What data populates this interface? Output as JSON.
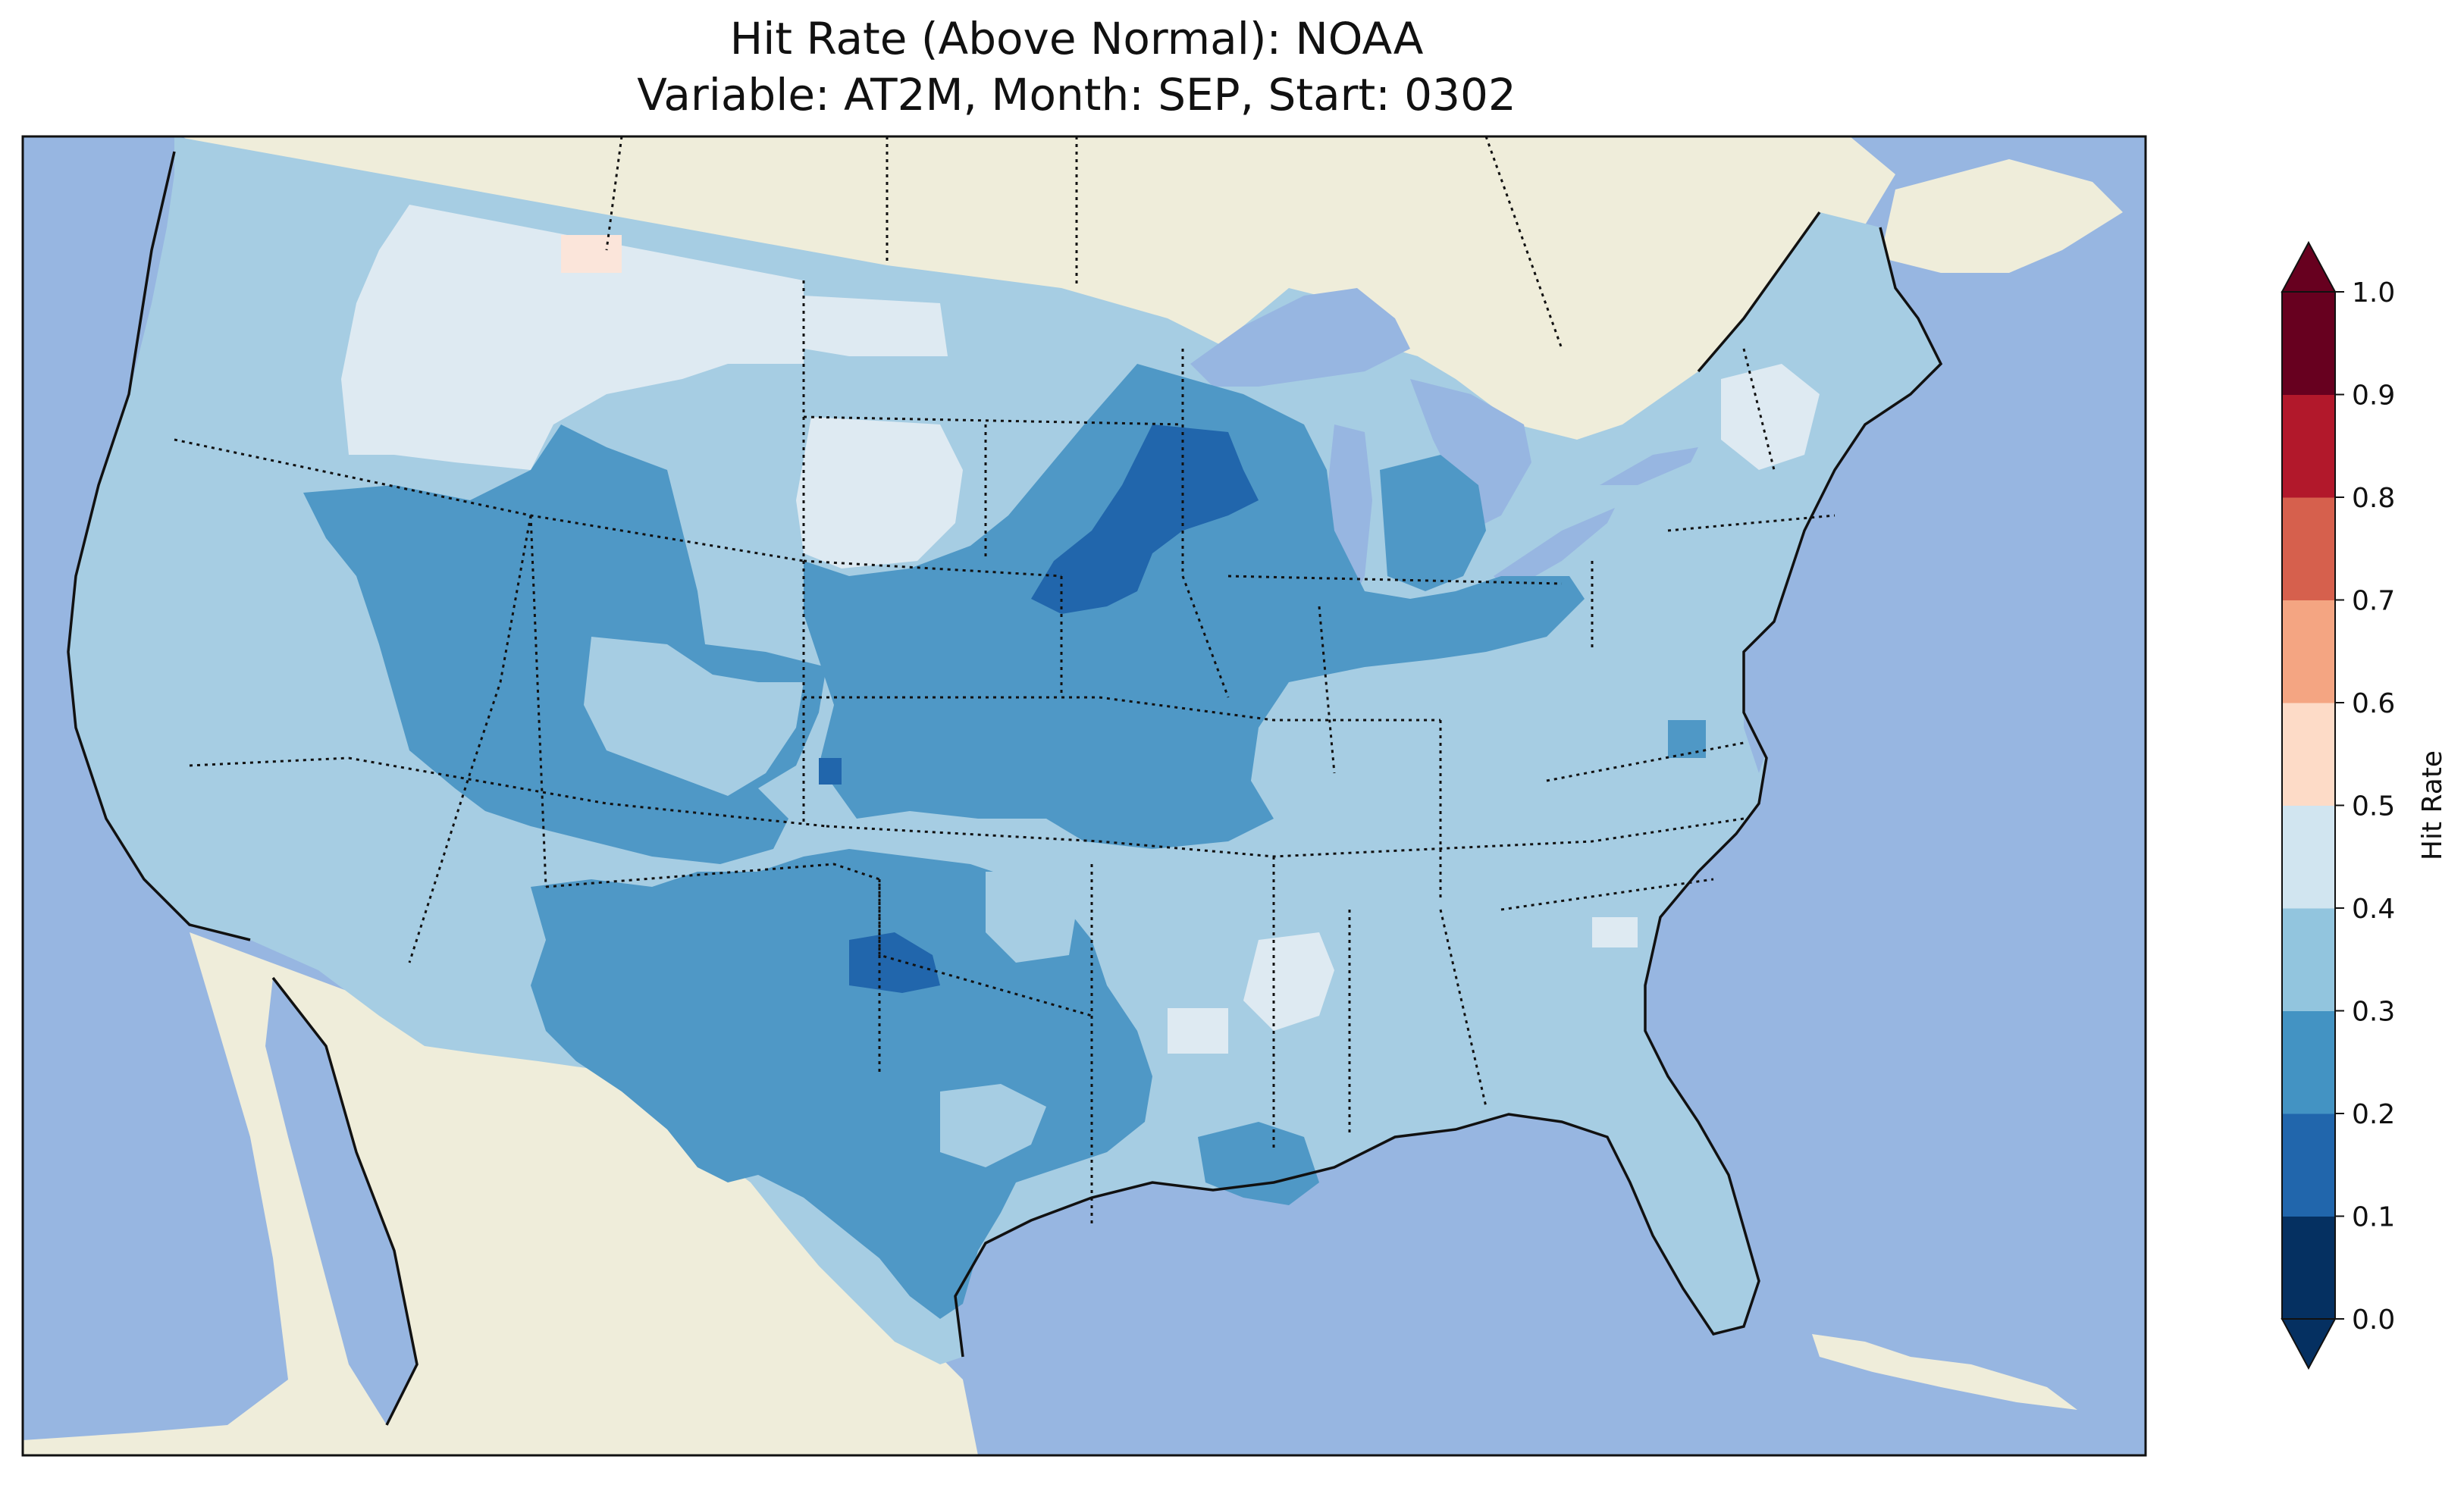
{
  "title": {
    "line1": "Hit Rate (Above Normal): NOAA",
    "line2": "Variable: AT2M, Month: SEP, Start: 0302"
  },
  "colorbar": {
    "label": "Hit Rate",
    "ticks": [
      "0.0",
      "0.1",
      "0.2",
      "0.3",
      "0.4",
      "0.5",
      "0.6",
      "0.7",
      "0.8",
      "0.9",
      "1.0"
    ],
    "colors": [
      "#053061",
      "#2166ac",
      "#4393c3",
      "#92c5de",
      "#d1e5f0",
      "#fddbc7",
      "#f4a582",
      "#d6604d",
      "#b2182b",
      "#67001f"
    ],
    "extend": "both"
  },
  "map_colors": {
    "ocean": "#97b6e1",
    "land": "#efedda",
    "bin_0_1": "#053061",
    "bin_1_2": "#2166ac",
    "bin_2_3": "#4f98c6",
    "bin_3_4": "#a6cde3",
    "bin_4_5": "#deeaf2",
    "bin_5_6": "#fbe5da"
  },
  "chart_data": {
    "type": "heatmap",
    "title": "Hit Rate (Above Normal): NOAA\nVariable: AT2M, Month: SEP, Start: 0302",
    "colorbar_label": "Hit Rate",
    "vmin": 0.0,
    "vmax": 1.0,
    "bins": [
      0.0,
      0.1,
      0.2,
      0.3,
      0.4,
      0.5,
      0.6,
      0.7,
      0.8,
      0.9,
      1.0
    ],
    "regions": [
      {
        "region": "West Coast / Pacific states",
        "range": "0.3-0.4"
      },
      {
        "region": "Montana / northern Idaho",
        "range": "0.4-0.5"
      },
      {
        "region": "Northwest Montana border patch",
        "range": "0.5-0.6"
      },
      {
        "region": "Western South Dakota",
        "range": "0.4-0.5"
      },
      {
        "region": "Utah / Wyoming / Colorado",
        "range": "0.2-0.3"
      },
      {
        "region": "Kansas / Nebraska / Iowa / Missouri",
        "range": "0.2-0.3"
      },
      {
        "region": "Minnesota / Wisconsin core",
        "range": "0.1-0.2"
      },
      {
        "region": "Texas / Oklahoma",
        "range": "0.2-0.3"
      },
      {
        "region": "Southeast / Northeast",
        "range": "0.3-0.4"
      },
      {
        "region": "Mississippi / northern New England",
        "range": "0.4-0.5"
      }
    ]
  }
}
